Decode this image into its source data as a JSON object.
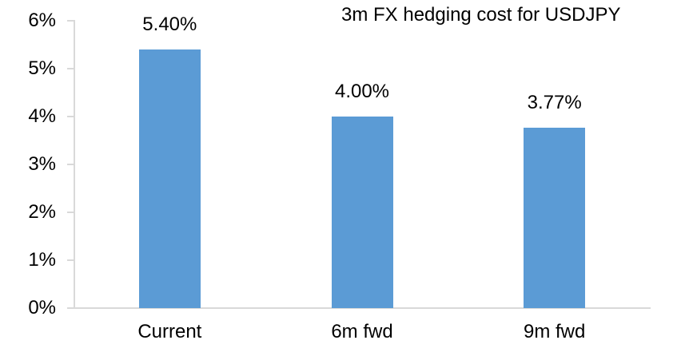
{
  "chart_data": {
    "type": "bar",
    "title": "3m FX hedging cost for USDJPY",
    "categories": [
      "Current",
      "6m fwd",
      "9m fwd"
    ],
    "values": [
      5.4,
      4.0,
      3.77
    ],
    "value_labels": [
      "5.40%",
      "4.00%",
      "3.77%"
    ],
    "xlabel": "",
    "ylabel": "",
    "ylim": [
      0,
      6
    ],
    "ytick_step": 1,
    "ytick_labels": [
      "0%",
      "1%",
      "2%",
      "3%",
      "4%",
      "5%",
      "6%"
    ],
    "grid": false,
    "legend": false,
    "bar_color": "#5b9bd5",
    "axis_color": "#d9d9d9",
    "text_color": "#000000"
  }
}
